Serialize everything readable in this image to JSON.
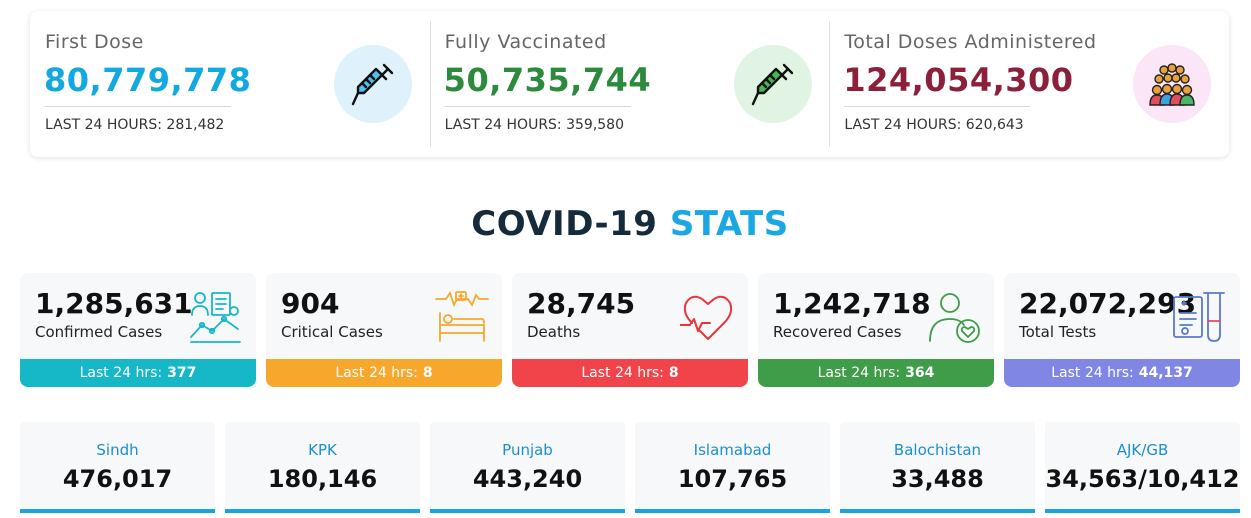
{
  "vaccination": [
    {
      "label": "First Dose",
      "value": "80,779,778",
      "sub": "LAST 24 HOURS: 281,482",
      "color": "#12a9e0",
      "icon_bg": "#dff1fb",
      "icon": "syringe-icon"
    },
    {
      "label": "Fully Vaccinated",
      "value": "50,735,744",
      "sub": "LAST 24 HOURS: 359,580",
      "color": "#2c8a3c",
      "icon_bg": "#e1f4e3",
      "icon": "syringe-icon"
    },
    {
      "label": "Total Doses Administered",
      "value": "124,054,300",
      "sub": "LAST 24 HOURS: 620,643",
      "color": "#8c1f3a",
      "icon_bg": "#fbe6f7",
      "icon": "crowd-icon"
    }
  ],
  "title": {
    "part1": "COVID-19",
    "part2": "STATS"
  },
  "stats": [
    {
      "value": "1,285,631",
      "label": "Confirmed Cases",
      "last_label": "Last 24 hrs:",
      "last_value": "377",
      "color": "#16b8c8",
      "icon": "data-analysis-icon"
    },
    {
      "value": "904",
      "label": "Critical Cases",
      "last_label": "Last 24 hrs:",
      "last_value": "8",
      "color": "#f7a82c",
      "icon": "hospital-bed-icon"
    },
    {
      "value": "28,745",
      "label": "Deaths",
      "last_label": "Last 24 hrs:",
      "last_value": "8",
      "color": "#f0444a",
      "icon": "heartbeat-icon"
    },
    {
      "value": "1,242,718",
      "label": "Recovered Cases",
      "last_label": "Last 24 hrs:",
      "last_value": "364",
      "color": "#3f9c48",
      "icon": "recovered-person-icon"
    },
    {
      "value": "22,072,293",
      "label": "Total Tests",
      "last_label": "Last 24 hrs:",
      "last_value": "44,137",
      "color": "#7f86e3",
      "icon": "lab-test-icon"
    }
  ],
  "provinces": [
    {
      "name": "Sindh",
      "value": "476,017"
    },
    {
      "name": "KPK",
      "value": "180,146"
    },
    {
      "name": "Punjab",
      "value": "443,240"
    },
    {
      "name": "Islamabad",
      "value": "107,765"
    },
    {
      "name": "Balochistan",
      "value": "33,488"
    },
    {
      "name": "AJK/GB",
      "value": "34,563/10,412"
    }
  ]
}
